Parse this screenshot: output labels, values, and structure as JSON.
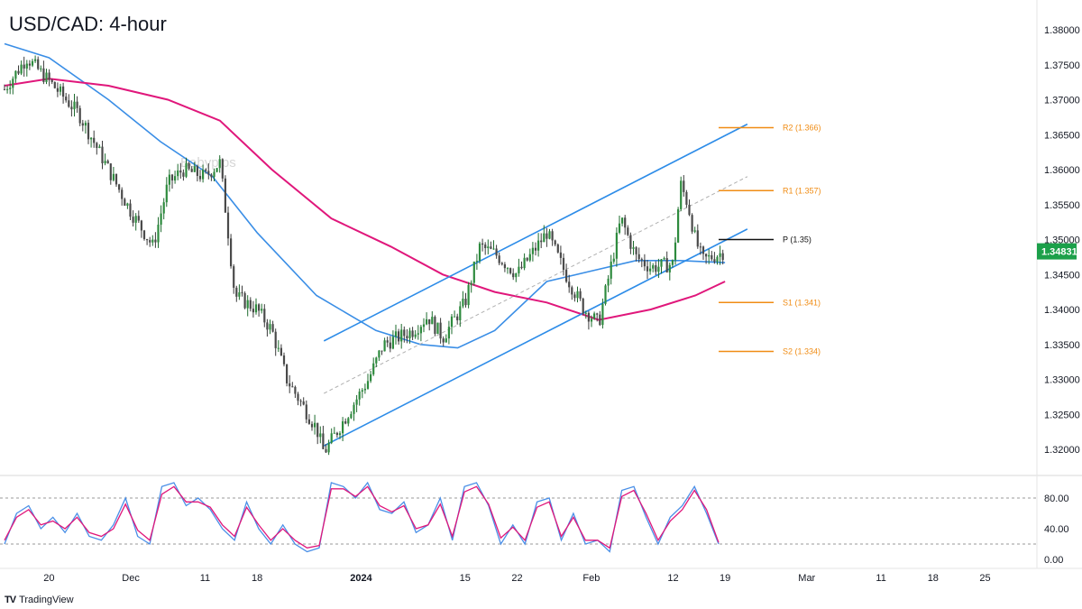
{
  "title": "USD/CAD: 4-hour",
  "watermark": "Babypips",
  "brand": {
    "logo_glyph": "TV",
    "name": "TradingView"
  },
  "colors": {
    "candle_up": "#1e6b2e",
    "candle_down": "#3a3a3a",
    "ma_fast": "#3a8ee6",
    "ma_slow": "#e0177b",
    "channel": "#2d8ce8",
    "midline": "#b0b0b0",
    "pivot_line": "#111111",
    "sr_lines": "#f08c14",
    "price_badge": "#1ca04a",
    "stoch_k": "#4a8fe7",
    "stoch_d": "#e0177b"
  },
  "chart_data": [
    {
      "type": "candlestick",
      "title": "USD/CAD: 4-hour",
      "ylim": [
        1.315,
        1.385
      ],
      "y_ticks": [
        "1.38000",
        "1.37500",
        "1.37000",
        "1.36500",
        "1.36000",
        "1.35500",
        "1.35000",
        "1.34500",
        "1.34000",
        "1.33500",
        "1.33000",
        "1.32500",
        "1.32000"
      ],
      "x_ticks": [
        "20",
        "Dec",
        "11",
        "18",
        "2024",
        "15",
        "22",
        "Feb",
        "12",
        "19",
        "Mar",
        "11",
        "18",
        "25"
      ],
      "last_price": "1.34831",
      "levels": [
        {
          "label": "R2 (1.366)",
          "value": 1.366
        },
        {
          "label": "R1 (1.357)",
          "value": 1.357
        },
        {
          "label": "P (1.35)",
          "value": 1.35
        },
        {
          "label": "S1 (1.341)",
          "value": 1.341
        },
        {
          "label": "S2 (1.334)",
          "value": 1.334
        }
      ],
      "channel": {
        "upper": [
          [
            "2023-12-27",
            1.3355
          ],
          [
            "2024-02-22",
            1.3665
          ]
        ],
        "lower": [
          [
            "2023-12-27",
            1.3205
          ],
          [
            "2024-02-22",
            1.3515
          ]
        ],
        "mid_dashed": [
          [
            "2023-12-27",
            1.328
          ],
          [
            "2024-02-22",
            1.359
          ]
        ]
      },
      "price_path": [
        [
          "2023-11-14",
          1.3715
        ],
        [
          "2023-11-17",
          1.376
        ],
        [
          "2023-11-21",
          1.3715
        ],
        [
          "2023-11-24",
          1.368
        ],
        [
          "2023-11-28",
          1.36
        ],
        [
          "2023-12-01",
          1.354
        ],
        [
          "2023-12-04",
          1.349
        ],
        [
          "2023-12-06",
          1.358
        ],
        [
          "2023-12-08",
          1.36
        ],
        [
          "2023-12-11",
          1.359
        ],
        [
          "2023-12-13",
          1.361
        ],
        [
          "2023-12-14",
          1.352
        ],
        [
          "2023-12-15",
          1.342
        ],
        [
          "2023-12-18",
          1.34
        ],
        [
          "2023-12-20",
          1.337
        ],
        [
          "2023-12-22",
          1.33
        ],
        [
          "2023-12-26",
          1.323
        ],
        [
          "2023-12-27",
          1.3195
        ],
        [
          "2023-12-29",
          1.323
        ],
        [
          "2024-01-02",
          1.33
        ],
        [
          "2024-01-04",
          1.335
        ],
        [
          "2024-01-08",
          1.337
        ],
        [
          "2024-01-10",
          1.339
        ],
        [
          "2024-01-12",
          1.336
        ],
        [
          "2024-01-15",
          1.341
        ],
        [
          "2024-01-17",
          1.349
        ],
        [
          "2024-01-19",
          1.348
        ],
        [
          "2024-01-22",
          1.345
        ],
        [
          "2024-01-24",
          1.348
        ],
        [
          "2024-01-26",
          1.351
        ],
        [
          "2024-01-29",
          1.344
        ],
        [
          "2024-01-31",
          1.34
        ],
        [
          "2024-02-02",
          1.338
        ],
        [
          "2024-02-05",
          1.353
        ],
        [
          "2024-02-07",
          1.3475
        ],
        [
          "2024-02-09",
          1.346
        ],
        [
          "2024-02-12",
          1.3465
        ],
        [
          "2024-02-13",
          1.358
        ],
        [
          "2024-02-14",
          1.355
        ],
        [
          "2024-02-15",
          1.35
        ],
        [
          "2024-02-16",
          1.347
        ],
        [
          "2024-02-19",
          1.3483
        ]
      ],
      "ma_fast": [
        [
          "2023-11-14",
          1.378
        ],
        [
          "2023-11-20",
          1.376
        ],
        [
          "2023-11-28",
          1.37
        ],
        [
          "2023-12-05",
          1.364
        ],
        [
          "2023-12-12",
          1.359
        ],
        [
          "2023-12-18",
          1.351
        ],
        [
          "2023-12-26",
          1.342
        ],
        [
          "2024-01-03",
          1.337
        ],
        [
          "2024-01-09",
          1.335
        ],
        [
          "2024-01-14",
          1.3345
        ],
        [
          "2024-01-19",
          1.337
        ],
        [
          "2024-01-26",
          1.344
        ],
        [
          "2024-02-01",
          1.3455
        ],
        [
          "2024-02-07",
          1.347
        ],
        [
          "2024-02-13",
          1.347
        ],
        [
          "2024-02-19",
          1.3467
        ]
      ],
      "ma_slow": [
        [
          "2023-11-14",
          1.372
        ],
        [
          "2023-11-20",
          1.373
        ],
        [
          "2023-11-28",
          1.372
        ],
        [
          "2023-12-06",
          1.37
        ],
        [
          "2023-12-13",
          1.367
        ],
        [
          "2023-12-20",
          1.36
        ],
        [
          "2023-12-28",
          1.353
        ],
        [
          "2024-01-05",
          1.349
        ],
        [
          "2024-01-12",
          1.345
        ],
        [
          "2024-01-19",
          1.3425
        ],
        [
          "2024-01-26",
          1.341
        ],
        [
          "2024-02-02",
          1.3385
        ],
        [
          "2024-02-09",
          1.34
        ],
        [
          "2024-02-15",
          1.342
        ],
        [
          "2024-02-19",
          1.344
        ]
      ]
    },
    {
      "type": "line",
      "title": "Stochastic",
      "ylim": [
        0,
        100
      ],
      "y_ticks": [
        "80.00",
        "40.00",
        "0.00"
      ],
      "reference_levels": [
        80,
        20
      ],
      "series": [
        {
          "values": [
            20,
            60,
            70,
            40,
            55,
            35,
            60,
            30,
            25,
            45,
            80,
            30,
            20,
            95,
            100,
            70,
            80,
            65,
            40,
            25,
            75,
            40,
            20,
            45,
            20,
            10,
            15,
            100,
            95,
            80,
            100,
            65,
            60,
            75,
            35,
            45,
            80,
            25,
            95,
            100,
            70,
            20,
            45,
            20,
            75,
            80,
            25,
            60,
            20,
            25,
            10,
            90,
            95,
            55,
            20,
            55,
            70,
            95,
            60,
            20
          ]
        },
        {
          "values": [
            25,
            55,
            65,
            45,
            50,
            40,
            55,
            35,
            30,
            40,
            72,
            38,
            25,
            85,
            95,
            75,
            75,
            68,
            45,
            30,
            68,
            45,
            25,
            40,
            25,
            15,
            18,
            92,
            92,
            82,
            95,
            70,
            62,
            70,
            40,
            45,
            72,
            30,
            88,
            95,
            72,
            28,
            42,
            25,
            68,
            75,
            30,
            55,
            25,
            25,
            15,
            82,
            90,
            60,
            25,
            50,
            65,
            90,
            65,
            22
          ]
        }
      ]
    }
  ]
}
